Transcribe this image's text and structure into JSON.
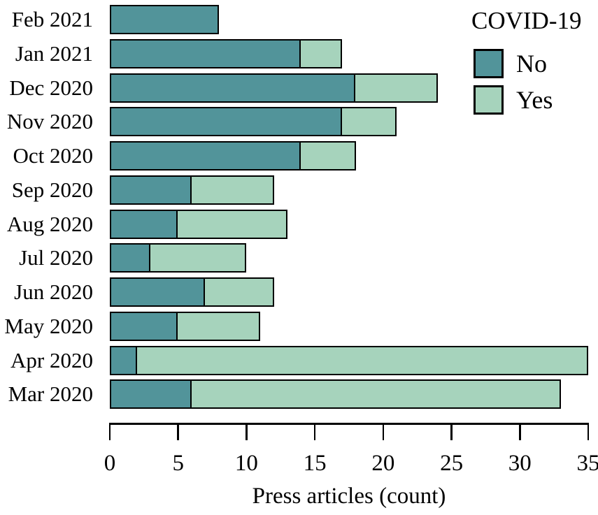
{
  "chart_data": {
    "type": "bar",
    "orientation": "horizontal",
    "stacked": true,
    "title": "",
    "xlabel": "Press articles (count)",
    "ylabel": "",
    "xlim": [
      0,
      35
    ],
    "x_ticks": [
      0,
      5,
      10,
      15,
      20,
      25,
      30,
      35
    ],
    "grid": false,
    "legend_position": "top-right",
    "categories": [
      "Feb 2021",
      "Jan 2021",
      "Dec 2020",
      "Nov 2020",
      "Oct 2020",
      "Sep 2020",
      "Aug 2020",
      "Jul 2020",
      "Jun 2020",
      "May 2020",
      "Apr 2020",
      "Mar 2020"
    ],
    "series": [
      {
        "name": "No",
        "color": "#52949a",
        "values": [
          8,
          14,
          18,
          17,
          14,
          6,
          5,
          3,
          7,
          5,
          2,
          6
        ]
      },
      {
        "name": "Yes",
        "color": "#a6d3bc",
        "values": [
          0,
          3,
          6,
          4,
          4,
          6,
          8,
          7,
          5,
          6,
          33,
          27
        ]
      }
    ]
  },
  "legend": {
    "title": "COVID-19",
    "items": [
      {
        "label": "No",
        "color": "#52949a"
      },
      {
        "label": "Yes",
        "color": "#a6d3bc"
      }
    ]
  },
  "axis": {
    "title": "Press articles (count)",
    "tick_labels": [
      "0",
      "5",
      "10",
      "15",
      "20",
      "25",
      "30",
      "35"
    ]
  },
  "colors": {
    "bar_outline": "#000000",
    "background": "#ffffff",
    "text": "#000000"
  }
}
